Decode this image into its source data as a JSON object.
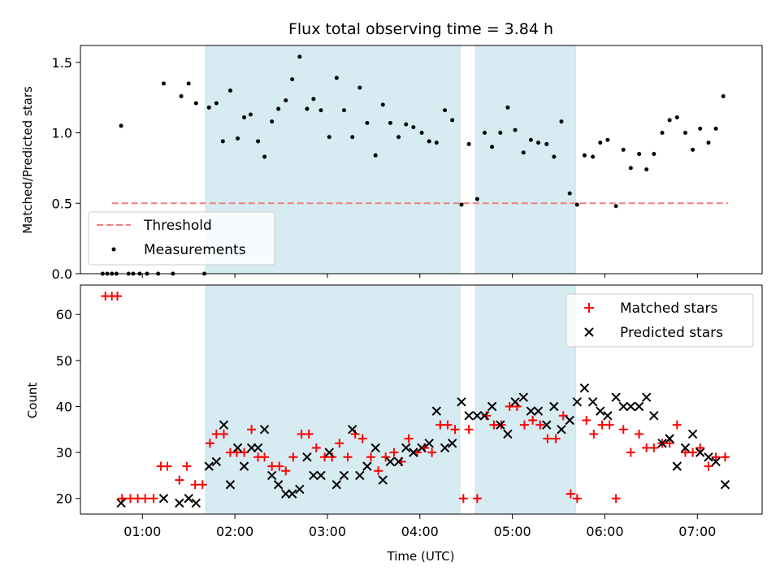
{
  "chart_data": [
    {
      "type": "scatter",
      "title": "Flux total observing time = 3.84 h",
      "xlabel": "",
      "ylabel": "Matched/Predicted stars",
      "ylim": [
        0,
        1.62
      ],
      "yticks": [
        0.0,
        0.5,
        1.0,
        1.5
      ],
      "ytick_labels": [
        "0.0",
        "0.5",
        "1.0",
        "1.5"
      ],
      "xlim_hours": [
        0.33,
        7.7
      ],
      "shaded_intervals_hours": [
        [
          1.683,
          4.433
        ],
        [
          4.6,
          5.683
        ]
      ],
      "legend_position": "lower-left",
      "series": [
        {
          "name": "Threshold",
          "kind": "dashed-line",
          "color": "#f08080",
          "x_hours": [
            0.67,
            7.33
          ],
          "y": [
            0.5,
            0.5
          ]
        },
        {
          "name": "Measurements",
          "kind": "dot",
          "color": "#000000",
          "points": [
            [
              0.57,
              0
            ],
            [
              0.62,
              0
            ],
            [
              0.67,
              0
            ],
            [
              0.72,
              0
            ],
            [
              0.77,
              1.05
            ],
            [
              0.85,
              0
            ],
            [
              0.9,
              0
            ],
            [
              0.97,
              0
            ],
            [
              1.05,
              0
            ],
            [
              1.17,
              0
            ],
            [
              1.23,
              1.35
            ],
            [
              1.33,
              0
            ],
            [
              1.42,
              1.26
            ],
            [
              1.5,
              1.35
            ],
            [
              1.58,
              1.21
            ],
            [
              1.67,
              0
            ],
            [
              1.72,
              1.18
            ],
            [
              1.8,
              1.21
            ],
            [
              1.87,
              0.94
            ],
            [
              1.95,
              1.3
            ],
            [
              2.03,
              0.96
            ],
            [
              2.1,
              1.11
            ],
            [
              2.17,
              1.13
            ],
            [
              2.25,
              0.94
            ],
            [
              2.32,
              0.83
            ],
            [
              2.4,
              1.08
            ],
            [
              2.47,
              1.17
            ],
            [
              2.55,
              1.23
            ],
            [
              2.62,
              1.38
            ],
            [
              2.7,
              1.54
            ],
            [
              2.78,
              1.17
            ],
            [
              2.85,
              1.24
            ],
            [
              2.93,
              1.16
            ],
            [
              3.02,
              0.97
            ],
            [
              3.1,
              1.39
            ],
            [
              3.18,
              1.16
            ],
            [
              3.27,
              0.97
            ],
            [
              3.35,
              1.32
            ],
            [
              3.43,
              1.07
            ],
            [
              3.52,
              0.84
            ],
            [
              3.6,
              1.2
            ],
            [
              3.68,
              1.07
            ],
            [
              3.77,
              0.97
            ],
            [
              3.85,
              1.06
            ],
            [
              3.93,
              1.04
            ],
            [
              4.02,
              1.0
            ],
            [
              4.1,
              0.94
            ],
            [
              4.18,
              0.93
            ],
            [
              4.27,
              1.16
            ],
            [
              4.35,
              1.09
            ],
            [
              4.45,
              0.49
            ],
            [
              4.53,
              0.92
            ],
            [
              4.62,
              0.53
            ],
            [
              4.7,
              1.0
            ],
            [
              4.78,
              0.9
            ],
            [
              4.87,
              1.0
            ],
            [
              4.95,
              1.18
            ],
            [
              5.03,
              1.02
            ],
            [
              5.12,
              0.86
            ],
            [
              5.2,
              0.95
            ],
            [
              5.28,
              0.93
            ],
            [
              5.37,
              0.92
            ],
            [
              5.45,
              0.83
            ],
            [
              5.53,
              1.08
            ],
            [
              5.62,
              0.57
            ],
            [
              5.7,
              0.49
            ],
            [
              5.78,
              0.84
            ],
            [
              5.87,
              0.83
            ],
            [
              5.95,
              0.93
            ],
            [
              6.03,
              0.95
            ],
            [
              6.12,
              0.48
            ],
            [
              6.2,
              0.88
            ],
            [
              6.28,
              0.75
            ],
            [
              6.37,
              0.85
            ],
            [
              6.45,
              0.74
            ],
            [
              6.53,
              0.85
            ],
            [
              6.62,
              1.0
            ],
            [
              6.7,
              1.09
            ],
            [
              6.78,
              1.11
            ],
            [
              6.87,
              1.0
            ],
            [
              6.95,
              0.88
            ],
            [
              7.03,
              1.03
            ],
            [
              7.12,
              0.93
            ],
            [
              7.2,
              1.03
            ],
            [
              7.28,
              1.26
            ]
          ]
        }
      ]
    },
    {
      "type": "scatter",
      "title": "",
      "xlabel": "Time (UTC)",
      "ylabel": "Count",
      "ylim": [
        16.6,
        66.4
      ],
      "yticks": [
        20,
        30,
        40,
        50,
        60
      ],
      "ytick_labels": [
        "20",
        "30",
        "40",
        "50",
        "60"
      ],
      "xlim_hours": [
        0.33,
        7.7
      ],
      "xticks_hours": [
        1,
        2,
        3,
        4,
        5,
        6,
        7
      ],
      "xtick_labels": [
        "01:00",
        "02:00",
        "03:00",
        "04:00",
        "05:00",
        "06:00",
        "07:00"
      ],
      "shaded_intervals_hours": [
        [
          1.683,
          4.433
        ],
        [
          4.6,
          5.683
        ]
      ],
      "legend_position": "upper-right",
      "series": [
        {
          "name": "Matched stars",
          "marker": "plus",
          "color": "#ff0000",
          "points": [
            [
              0.6,
              64
            ],
            [
              0.67,
              64
            ],
            [
              0.73,
              64
            ],
            [
              0.78,
              20
            ],
            [
              0.87,
              20
            ],
            [
              0.95,
              20
            ],
            [
              1.03,
              20
            ],
            [
              1.12,
              20
            ],
            [
              1.2,
              27
            ],
            [
              1.27,
              27
            ],
            [
              1.4,
              24
            ],
            [
              1.48,
              27
            ],
            [
              1.57,
              23
            ],
            [
              1.65,
              23
            ],
            [
              1.73,
              32
            ],
            [
              1.8,
              34
            ],
            [
              1.88,
              34
            ],
            [
              1.95,
              30
            ],
            [
              2.02,
              30
            ],
            [
              2.1,
              30
            ],
            [
              2.18,
              35
            ],
            [
              2.25,
              29
            ],
            [
              2.32,
              29
            ],
            [
              2.4,
              27
            ],
            [
              2.48,
              27
            ],
            [
              2.55,
              26
            ],
            [
              2.63,
              29
            ],
            [
              2.72,
              34
            ],
            [
              2.8,
              34
            ],
            [
              2.88,
              31
            ],
            [
              2.97,
              29
            ],
            [
              3.05,
              29
            ],
            [
              3.13,
              32
            ],
            [
              3.22,
              29
            ],
            [
              3.3,
              34
            ],
            [
              3.38,
              33
            ],
            [
              3.47,
              29
            ],
            [
              3.55,
              26
            ],
            [
              3.63,
              29
            ],
            [
              3.72,
              30
            ],
            [
              3.8,
              28
            ],
            [
              3.88,
              33
            ],
            [
              3.97,
              30
            ],
            [
              4.05,
              31
            ],
            [
              4.13,
              30
            ],
            [
              4.22,
              36
            ],
            [
              4.3,
              36
            ],
            [
              4.38,
              35
            ],
            [
              4.47,
              20
            ],
            [
              4.53,
              35
            ],
            [
              4.62,
              20
            ],
            [
              4.72,
              38
            ],
            [
              4.8,
              36
            ],
            [
              4.88,
              36
            ],
            [
              4.97,
              40
            ],
            [
              5.05,
              40
            ],
            [
              5.13,
              36
            ],
            [
              5.22,
              37
            ],
            [
              5.3,
              36
            ],
            [
              5.38,
              33
            ],
            [
              5.47,
              33
            ],
            [
              5.55,
              38
            ],
            [
              5.63,
              21
            ],
            [
              5.7,
              20
            ],
            [
              5.8,
              37
            ],
            [
              5.88,
              34
            ],
            [
              5.97,
              36
            ],
            [
              6.05,
              36
            ],
            [
              6.12,
              20
            ],
            [
              6.2,
              35
            ],
            [
              6.28,
              30
            ],
            [
              6.37,
              34
            ],
            [
              6.45,
              31
            ],
            [
              6.53,
              31
            ],
            [
              6.62,
              32
            ],
            [
              6.7,
              32
            ],
            [
              6.78,
              36
            ],
            [
              6.87,
              30
            ],
            [
              6.95,
              30
            ],
            [
              7.03,
              31
            ],
            [
              7.12,
              27
            ],
            [
              7.2,
              29
            ],
            [
              7.3,
              29
            ]
          ]
        },
        {
          "name": "Predicted stars",
          "marker": "cross",
          "color": "#000000",
          "points": [
            [
              0.77,
              19
            ],
            [
              1.23,
              20
            ],
            [
              1.4,
              19
            ],
            [
              1.5,
              20
            ],
            [
              1.58,
              19
            ],
            [
              1.72,
              27
            ],
            [
              1.8,
              28
            ],
            [
              1.88,
              36
            ],
            [
              1.95,
              23
            ],
            [
              2.03,
              31
            ],
            [
              2.1,
              27
            ],
            [
              2.18,
              31
            ],
            [
              2.25,
              31
            ],
            [
              2.32,
              35
            ],
            [
              2.4,
              25
            ],
            [
              2.47,
              23
            ],
            [
              2.55,
              21
            ],
            [
              2.62,
              21
            ],
            [
              2.7,
              22
            ],
            [
              2.78,
              29
            ],
            [
              2.85,
              25
            ],
            [
              2.93,
              25
            ],
            [
              3.02,
              30
            ],
            [
              3.1,
              23
            ],
            [
              3.18,
              25
            ],
            [
              3.27,
              35
            ],
            [
              3.35,
              25
            ],
            [
              3.43,
              27
            ],
            [
              3.52,
              31
            ],
            [
              3.6,
              24
            ],
            [
              3.68,
              28
            ],
            [
              3.77,
              28
            ],
            [
              3.85,
              31
            ],
            [
              3.93,
              30
            ],
            [
              4.02,
              31
            ],
            [
              4.1,
              32
            ],
            [
              4.18,
              39
            ],
            [
              4.27,
              31
            ],
            [
              4.35,
              32
            ],
            [
              4.45,
              41
            ],
            [
              4.53,
              38
            ],
            [
              4.62,
              38
            ],
            [
              4.7,
              38
            ],
            [
              4.78,
              40
            ],
            [
              4.87,
              36
            ],
            [
              4.95,
              34
            ],
            [
              5.03,
              41
            ],
            [
              5.12,
              42
            ],
            [
              5.2,
              39
            ],
            [
              5.28,
              39
            ],
            [
              5.37,
              36
            ],
            [
              5.45,
              40
            ],
            [
              5.53,
              35
            ],
            [
              5.62,
              37
            ],
            [
              5.7,
              41
            ],
            [
              5.78,
              44
            ],
            [
              5.87,
              41
            ],
            [
              5.95,
              39
            ],
            [
              6.03,
              38
            ],
            [
              6.12,
              42
            ],
            [
              6.2,
              40
            ],
            [
              6.28,
              40
            ],
            [
              6.37,
              40
            ],
            [
              6.45,
              42
            ],
            [
              6.53,
              38
            ],
            [
              6.62,
              32
            ],
            [
              6.7,
              33
            ],
            [
              6.78,
              27
            ],
            [
              6.87,
              31
            ],
            [
              6.95,
              34
            ],
            [
              7.03,
              30
            ],
            [
              7.12,
              29
            ],
            [
              7.2,
              28
            ],
            [
              7.3,
              23
            ]
          ]
        }
      ]
    }
  ]
}
